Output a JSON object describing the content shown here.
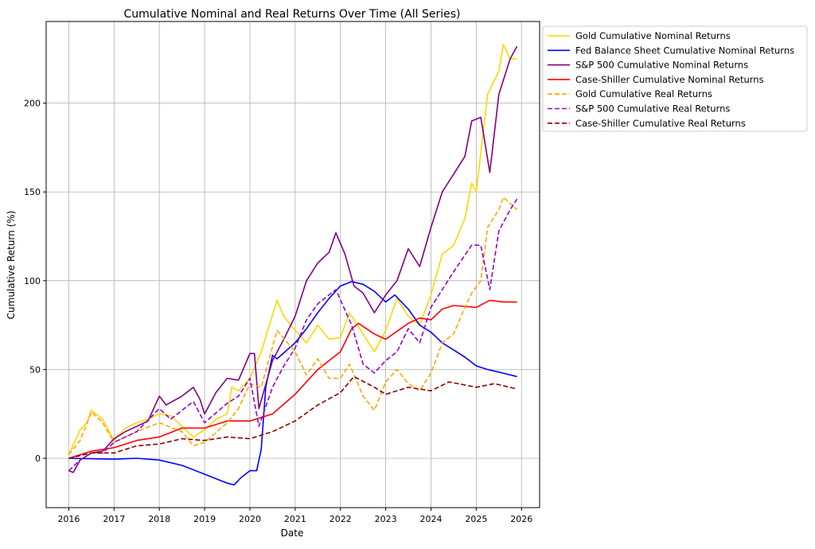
{
  "chart_data": {
    "type": "line",
    "title": "Cumulative Nominal and Real Returns Over Time (All Series)",
    "xlabel": "Date",
    "ylabel": "Cumulative Return (%)",
    "xlim": [
      2015.5,
      2026.4
    ],
    "ylim": [
      -27.8,
      246
    ],
    "xticks": [
      2016,
      2017,
      2018,
      2019,
      2020,
      2021,
      2022,
      2023,
      2024,
      2025,
      2026
    ],
    "yticks": [
      0,
      50,
      100,
      150,
      200
    ],
    "grid": true,
    "legend_placement": "outside-top-right",
    "series": [
      {
        "name": "Gold Cumulative Nominal Returns",
        "color": "#FFD700",
        "dash": false,
        "x": [
          2016,
          2016.25,
          2016.4,
          2016.5,
          2016.75,
          2017,
          2017.25,
          2017.5,
          2017.75,
          2018,
          2018.25,
          2018.5,
          2018.75,
          2019,
          2019.25,
          2019.5,
          2019.6,
          2019.75,
          2020,
          2020.25,
          2020.6,
          2020.75,
          2021,
          2021.25,
          2021.5,
          2021.75,
          2022,
          2022.2,
          2022.5,
          2022.75,
          2023,
          2023.25,
          2023.5,
          2023.75,
          2024,
          2024.25,
          2024.5,
          2024.75,
          2024.9,
          2025,
          2025.25,
          2025.5,
          2025.6,
          2025.75,
          2025.9
        ],
        "y": [
          2,
          16,
          20,
          27,
          22,
          10,
          17,
          20,
          22,
          25,
          24,
          18,
          12,
          16,
          22,
          25,
          40,
          38,
          45,
          60,
          89,
          80,
          72,
          65,
          75,
          67,
          68,
          82,
          70,
          60,
          72,
          90,
          80,
          75,
          92,
          115,
          120,
          135,
          155,
          150,
          205,
          218,
          233,
          225,
          225
        ]
      },
      {
        "name": "Fed Balance Sheet Cumulative Nominal Returns",
        "color": "#0000FF",
        "dash": false,
        "x": [
          2016,
          2017,
          2017.5,
          2018,
          2018.5,
          2019,
          2019.5,
          2019.65,
          2019.8,
          2020,
          2020.15,
          2020.25,
          2020.35,
          2020.5,
          2020.6,
          2021,
          2021.25,
          2021.5,
          2021.75,
          2022,
          2022.25,
          2022.5,
          2022.75,
          2023,
          2023.2,
          2023.5,
          2023.75,
          2024,
          2024.25,
          2024.5,
          2024.75,
          2025,
          2025.25,
          2025.5,
          2025.9
        ],
        "y": [
          0,
          -0.5,
          0,
          -1,
          -4,
          -9,
          -14,
          -15,
          -11,
          -7,
          -7,
          5,
          40,
          58,
          56,
          65,
          73,
          82,
          90,
          97,
          99.5,
          98,
          94,
          88,
          92,
          84,
          75,
          71,
          65,
          61,
          57,
          52,
          50,
          48.5,
          46
        ]
      },
      {
        "name": "S&P 500 Cumulative Nominal Returns",
        "color": "#800080",
        "dash": false,
        "x": [
          2016,
          2016.1,
          2016.25,
          2016.5,
          2016.75,
          2017,
          2017.25,
          2017.5,
          2017.75,
          2018,
          2018.15,
          2018.5,
          2018.75,
          2018.9,
          2019,
          2019.25,
          2019.5,
          2019.75,
          2020,
          2020.1,
          2020.2,
          2020.5,
          2020.75,
          2021,
          2021.25,
          2021.5,
          2021.75,
          2021.9,
          2022.1,
          2022.3,
          2022.5,
          2022.75,
          2023,
          2023.25,
          2023.5,
          2023.75,
          2024,
          2024.25,
          2024.5,
          2024.75,
          2024.9,
          2025.1,
          2025.3,
          2025.5,
          2025.75,
          2025.9
        ],
        "y": [
          -7,
          -8,
          -1,
          3,
          4,
          11,
          15,
          18,
          21,
          35,
          30,
          35,
          40,
          33,
          25,
          37,
          45,
          44,
          59,
          59,
          28,
          55,
          67,
          80,
          100,
          110,
          116,
          127,
          115,
          97,
          93,
          82,
          92,
          100,
          118,
          108,
          130,
          150,
          160,
          170,
          190,
          192,
          161,
          205,
          225,
          232
        ]
      },
      {
        "name": "Case-Shiller Cumulative Nominal Returns",
        "color": "#FF0000",
        "dash": false,
        "x": [
          2016,
          2016.5,
          2017,
          2017.5,
          2018,
          2018.5,
          2019,
          2019.5,
          2020,
          2020.5,
          2021,
          2021.5,
          2022,
          2022.25,
          2022.4,
          2022.75,
          2023,
          2023.5,
          2023.75,
          2024,
          2024.25,
          2024.5,
          2025,
          2025.3,
          2025.6,
          2025.9
        ],
        "y": [
          0,
          4,
          6,
          10,
          12,
          17,
          17,
          21,
          21,
          25,
          36,
          50,
          60,
          73,
          76,
          70,
          67,
          76,
          79,
          78,
          84,
          86,
          85,
          89,
          88,
          88
        ]
      },
      {
        "name": "Gold Cumulative Real Returns",
        "color": "#FFA500",
        "dash": true,
        "x": [
          2016,
          2016.25,
          2016.5,
          2016.75,
          2017,
          2017.5,
          2018,
          2018.5,
          2018.75,
          2019,
          2019.5,
          2019.75,
          2020,
          2020.25,
          2020.6,
          2021,
          2021.25,
          2021.5,
          2021.75,
          2022,
          2022.2,
          2022.5,
          2022.75,
          2023,
          2023.25,
          2023.5,
          2023.75,
          2024,
          2024.25,
          2024.5,
          2024.75,
          2024.9,
          2025.1,
          2025.25,
          2025.5,
          2025.6,
          2025.9
        ],
        "y": [
          2,
          10,
          26,
          20,
          9,
          15,
          20,
          15,
          7,
          9,
          20,
          28,
          42,
          40,
          72,
          60,
          47,
          56,
          45,
          45,
          53,
          35,
          27,
          43,
          50,
          42,
          38,
          48,
          65,
          70,
          85,
          93,
          100,
          130,
          140,
          147,
          140
        ]
      },
      {
        "name": "S&P 500 Cumulative Real Returns",
        "color": "#9400D3",
        "dash": true,
        "x": [
          2016,
          2016.25,
          2016.5,
          2016.75,
          2017,
          2017.5,
          2018,
          2018.25,
          2018.75,
          2019,
          2019.5,
          2019.75,
          2020,
          2020.2,
          2020.5,
          2020.75,
          2021,
          2021.25,
          2021.5,
          2021.9,
          2022.25,
          2022.5,
          2022.75,
          2023,
          2023.25,
          2023.5,
          2023.75,
          2024,
          2024.25,
          2024.5,
          2024.9,
          2025.1,
          2025.3,
          2025.5,
          2025.75,
          2025.9
        ],
        "y": [
          -7,
          -1,
          3,
          3,
          9,
          15,
          28,
          22,
          32,
          20,
          31,
          35,
          45,
          18,
          40,
          52,
          62,
          78,
          87,
          95,
          75,
          53,
          48,
          55,
          60,
          73,
          65,
          85,
          95,
          105,
          120,
          120,
          95,
          128,
          140,
          146
        ]
      },
      {
        "name": "Case-Shiller Cumulative Real Returns",
        "color": "#8B0000",
        "dash": true,
        "x": [
          2016,
          2016.5,
          2017,
          2017.5,
          2018,
          2018.5,
          2019,
          2019.5,
          2020,
          2020.5,
          2021,
          2021.5,
          2022,
          2022.3,
          2022.75,
          2023,
          2023.5,
          2024,
          2024.4,
          2025,
          2025.4,
          2025.9
        ],
        "y": [
          0,
          3,
          3,
          7,
          8,
          11,
          10,
          12,
          11,
          15,
          21,
          30,
          37,
          46,
          40,
          36,
          40,
          38,
          43,
          40,
          42,
          39
        ]
      }
    ]
  }
}
